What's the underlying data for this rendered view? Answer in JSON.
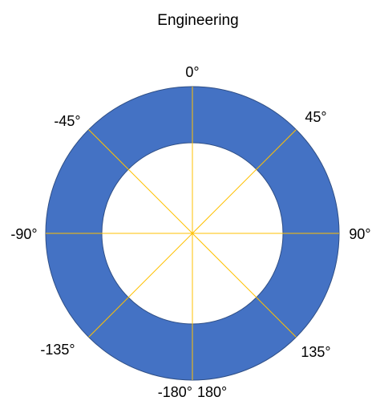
{
  "chart_data": {
    "type": "doughnut",
    "title": "Engineering",
    "segments": [
      {
        "from_deg": 0,
        "to_deg": 90,
        "color": "#4472C4"
      },
      {
        "from_deg": 90,
        "to_deg": 180,
        "color": "#4472C4"
      },
      {
        "from_deg": 180,
        "to_deg": 270,
        "color": "#4472C4"
      },
      {
        "from_deg": 270,
        "to_deg": 360,
        "color": "#4472C4"
      }
    ],
    "spokes_deg": [
      0,
      45,
      90,
      135,
      180,
      225,
      270,
      315
    ],
    "angle_labels": [
      {
        "angle": 0,
        "text": "0°"
      },
      {
        "angle": 45,
        "text": "45°"
      },
      {
        "angle": 90,
        "text": "90°"
      },
      {
        "angle": 135,
        "text": "135°"
      },
      {
        "angle": 180,
        "text": "180°"
      },
      {
        "angle": 180,
        "text": "-180°"
      },
      {
        "angle": -135,
        "text": "-135°"
      },
      {
        "angle": -90,
        "text": "-90°"
      },
      {
        "angle": -45,
        "text": "-45°"
      }
    ],
    "colors": {
      "ring": "#4472C4",
      "ring_edge": "#2F4F86",
      "spoke": "#FFC000",
      "background": "#FFFFFF"
    }
  }
}
